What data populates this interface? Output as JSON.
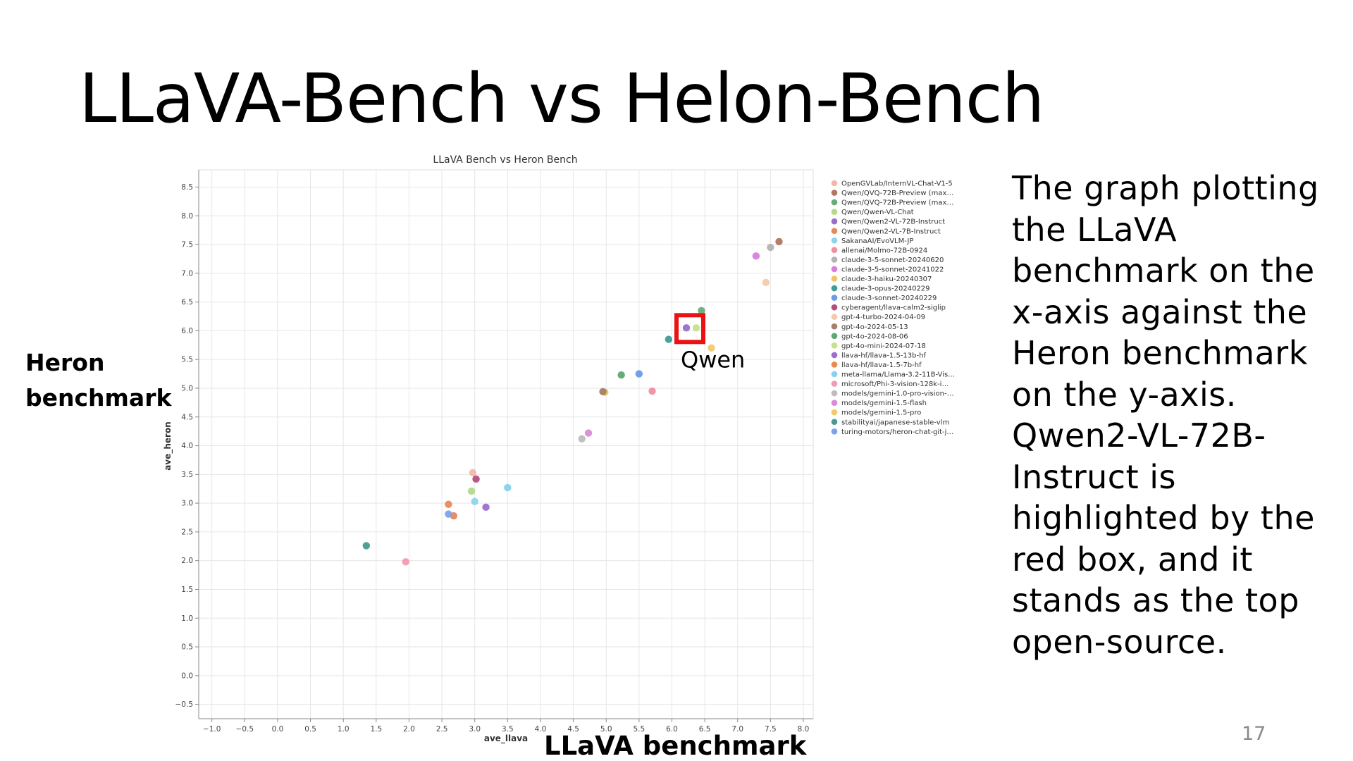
{
  "slide": {
    "title": "LLaVA-Bench vs Helon-Bench",
    "y_caption_line1": "Heron",
    "y_caption_line2": "benchmark",
    "x_caption": "LLaVA benchmark",
    "description": "The graph plotting the LLaVA benchmark on the x-axis against the Heron benchmark on the y-axis. Qwen2-VL-72B-Instruct is highlighted by the red box, and it stands as the top open-source.",
    "page_number": "17",
    "highlight_label": "Qwen",
    "highlight_color": "#ee1111"
  },
  "chart_data": {
    "type": "scatter",
    "title": "LLaVA Bench vs Heron Bench",
    "xlabel": "ave_llava",
    "ylabel": "ave_heron",
    "xlim": [
      -1.2,
      8.15
    ],
    "ylim": [
      -0.75,
      8.8
    ],
    "xticks": [
      "−1.0",
      "−0.5",
      "0.0",
      "0.5",
      "1.0",
      "1.5",
      "2.0",
      "2.5",
      "3.0",
      "3.5",
      "4.0",
      "4.5",
      "5.0",
      "5.5",
      "6.0",
      "6.5",
      "7.0",
      "7.5",
      "8.0"
    ],
    "yticks": [
      "−0.5",
      "0.0",
      "0.5",
      "1.0",
      "1.5",
      "2.0",
      "2.5",
      "3.0",
      "3.5",
      "4.0",
      "4.5",
      "5.0",
      "5.5",
      "6.0",
      "6.5",
      "7.0",
      "7.5",
      "8.0",
      "8.5"
    ],
    "grid": true,
    "legend_position": "right",
    "highlighted_series": "Qwen/Qwen2-VL-72B-Instruct",
    "series": [
      {
        "name": "OpenGVLab/InternVL-Chat-V1-5",
        "color": "#f2b9a6",
        "x": 2.97,
        "y": 3.53
      },
      {
        "name": "Qwen/QVQ-72B-Preview (max…",
        "color": "#b07860",
        "x": 7.63,
        "y": 7.55
      },
      {
        "name": "Qwen/QVQ-72B-Preview (max…",
        "color": "#6aab7c",
        "x": 6.45,
        "y": 6.35
      },
      {
        "name": "Qwen/Qwen-VL-Chat",
        "color": "#b3d98a",
        "x": 2.95,
        "y": 3.21
      },
      {
        "name": "Qwen/Qwen2-VL-72B-Instruct",
        "color": "#9a6fca",
        "x": 6.22,
        "y": 6.05
      },
      {
        "name": "Qwen/Qwen2-VL-7B-Instruct",
        "color": "#e8875a",
        "x": 2.68,
        "y": 2.78
      },
      {
        "name": "SakanaAI/EvoVLM-JP",
        "color": "#8fd4ec",
        "x": 3.0,
        "y": 3.03
      },
      {
        "name": "allenai/Molmo-72B-0924",
        "color": "#f08fa4",
        "x": 5.7,
        "y": 4.95
      },
      {
        "name": "claude-3-5-sonnet-20240620",
        "color": "#b3b3b3",
        "x": 7.5,
        "y": 7.45
      },
      {
        "name": "claude-3-5-sonnet-20241022",
        "color": "#d97ed9",
        "x": 7.28,
        "y": 7.3
      },
      {
        "name": "claude-3-haiku-20240307",
        "color": "#eec464",
        "x": 4.98,
        "y": 4.93
      },
      {
        "name": "claude-3-opus-20240229",
        "color": "#3d9e94",
        "x": 5.95,
        "y": 5.85
      },
      {
        "name": "claude-3-sonnet-20240229",
        "color": "#6c9ae8",
        "x": 5.5,
        "y": 5.25
      },
      {
        "name": "cyberagent/llava-calm2-siglip",
        "color": "#b54d7e",
        "x": 3.02,
        "y": 3.42
      },
      {
        "name": "gpt-4-turbo-2024-04-09",
        "color": "#f5c9b0",
        "x": 7.43,
        "y": 6.84
      },
      {
        "name": "gpt-4o-2024-05-13",
        "color": "#a6806c",
        "x": 4.95,
        "y": 4.94
      },
      {
        "name": "gpt-4o-2024-08-06",
        "color": "#5fa86f",
        "x": 5.23,
        "y": 5.23
      },
      {
        "name": "gpt-4o-mini-2024-07-18",
        "color": "#c6e08e",
        "x": 6.37,
        "y": 6.05
      },
      {
        "name": "llava-hf/llava-1.5-13b-hf",
        "color": "#9b6fcf",
        "x": 3.17,
        "y": 2.93
      },
      {
        "name": "llava-hf/llava-1.5-7b-hf",
        "color": "#ea8a55",
        "x": 2.6,
        "y": 2.98
      },
      {
        "name": "meta-llama/Llama-3.2-11B-Vis…",
        "color": "#86d2ea",
        "x": 3.5,
        "y": 3.27
      },
      {
        "name": "microsoft/Phi-3-vision-128k-i…",
        "color": "#f29ab0",
        "x": 1.95,
        "y": 1.98
      },
      {
        "name": "models/gemini-1.0-pro-vision-…",
        "color": "#bdbdbd",
        "x": 4.63,
        "y": 4.12
      },
      {
        "name": "models/gemini-1.5-flash",
        "color": "#d98bd9",
        "x": 4.73,
        "y": 4.22
      },
      {
        "name": "models/gemini-1.5-pro",
        "color": "#f0cb6e",
        "x": 6.6,
        "y": 5.7
      },
      {
        "name": "stabilityai/japanese-stable-vlm",
        "color": "#449c8e",
        "x": 1.35,
        "y": 2.26
      },
      {
        "name": "turing-motors/heron-chat-git-j…",
        "color": "#7ca3ea",
        "x": 2.6,
        "y": 2.81
      }
    ]
  }
}
